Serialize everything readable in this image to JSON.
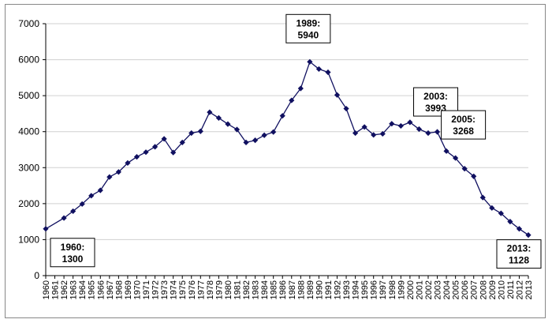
{
  "chart_data": {
    "type": "line",
    "title": "",
    "xlabel": "",
    "ylabel": "",
    "ylim": [
      0,
      7000
    ],
    "yticks": [
      0,
      1000,
      2000,
      3000,
      4000,
      5000,
      6000,
      7000
    ],
    "grid": "horizontal",
    "legend": "none",
    "colors": {
      "line": "#101060",
      "marker": "#101060",
      "grid": "#d0d0d0",
      "axis": "#000000"
    },
    "marker_shape": "diamond",
    "x": [
      1960,
      1962,
      1963,
      1964,
      1965,
      1966,
      1967,
      1968,
      1969,
      1970,
      1971,
      1972,
      1973,
      1974,
      1975,
      1976,
      1977,
      1978,
      1979,
      1980,
      1981,
      1982,
      1983,
      1984,
      1985,
      1986,
      1987,
      1988,
      1989,
      1990,
      1991,
      1992,
      1993,
      1994,
      1995,
      1996,
      1997,
      1998,
      1999,
      2000,
      2001,
      2002,
      2003,
      2004,
      2005,
      2006,
      2007,
      2008,
      2009,
      2010,
      2011,
      2012,
      2013
    ],
    "y": [
      1300,
      1600,
      1790,
      1990,
      2220,
      2370,
      2740,
      2880,
      3130,
      3300,
      3430,
      3580,
      3800,
      3420,
      3700,
      3960,
      4010,
      4540,
      4380,
      4210,
      4060,
      3700,
      3760,
      3900,
      3990,
      4440,
      4870,
      5200,
      5940,
      5740,
      5650,
      5020,
      4640,
      3960,
      4130,
      3910,
      3940,
      4220,
      4160,
      4260,
      4070,
      3960,
      3993,
      3460,
      3268,
      2970,
      2760,
      2170,
      1880,
      1730,
      1500,
      1300,
      1128
    ],
    "x_tick_labels": [
      "1960",
      "1961",
      "1962",
      "1963",
      "1964",
      "1965",
      "1966",
      "1967",
      "1968",
      "1969",
      "1970",
      "1971",
      "1972",
      "1973",
      "1974",
      "1975",
      "1976",
      "1977",
      "1978",
      "1979",
      "1980",
      "1981",
      "1982",
      "1983",
      "1984",
      "1985",
      "1986",
      "1987",
      "1988",
      "1989",
      "1990",
      "1991",
      "1992",
      "1993",
      "1994",
      "1995",
      "1996",
      "1997",
      "1998",
      "1999",
      "2000",
      "2001",
      "2002",
      "2003",
      "2004",
      "2005",
      "2006",
      "2007",
      "2008",
      "2009",
      "2010",
      "2011",
      "2012",
      "2013"
    ],
    "annotations": [
      {
        "line1": "1960:",
        "line2": "1300",
        "x": 1960,
        "y": 1300
      },
      {
        "line1": "1989:",
        "line2": "5940",
        "x": 1989,
        "y": 5940
      },
      {
        "line1": "2003:",
        "line2": "3993",
        "x": 2003,
        "y": 3993
      },
      {
        "line1": "2005:",
        "line2": "3268",
        "x": 2005,
        "y": 3268
      },
      {
        "line1": "2013:",
        "line2": "1128",
        "x": 2013,
        "y": 1128
      }
    ]
  }
}
